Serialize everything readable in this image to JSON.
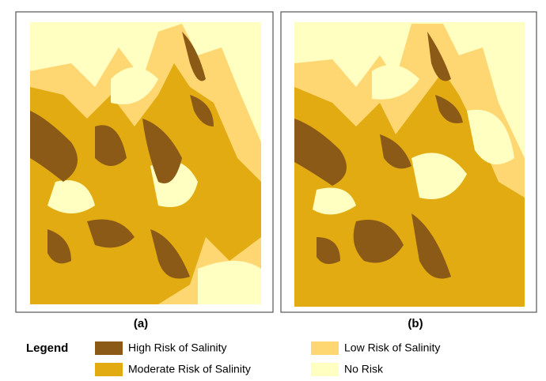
{
  "panels": [
    {
      "label": "(a)"
    },
    {
      "label": "(b)"
    }
  ],
  "legend": {
    "title": "Legend",
    "items": [
      {
        "label": "High Risk of Salinity",
        "color": "#8b5a16"
      },
      {
        "label": "Moderate Risk of Salinity",
        "color": "#e2ab12"
      },
      {
        "label": "Low Risk of Salinity",
        "color": "#fed772"
      },
      {
        "label": "No Risk",
        "color": "#ffffc2"
      }
    ]
  }
}
